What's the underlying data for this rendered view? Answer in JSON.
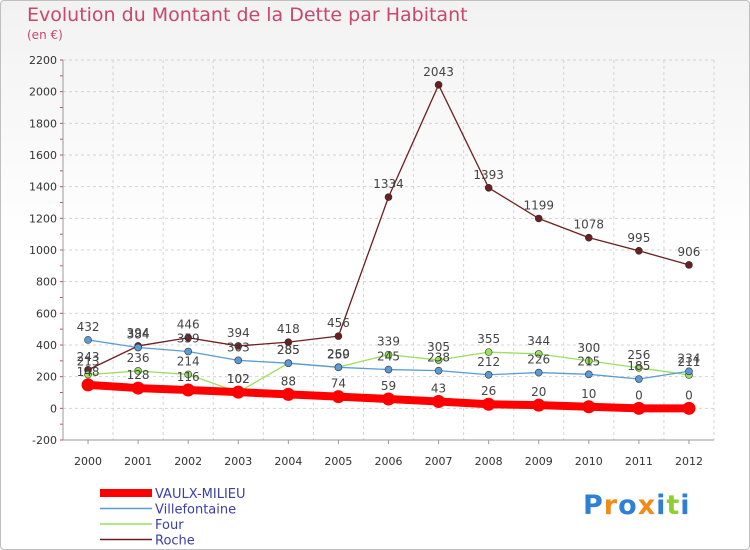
{
  "page": {
    "title": "Evolution du Montant de la Dette par Habitant",
    "subtitle": "(en €)"
  },
  "logo": {
    "text": "Proxiti"
  },
  "chart_data": {
    "type": "line",
    "title": "Evolution du Montant de la Dette par Habitant",
    "ylabel": "(en €)",
    "x": [
      2000,
      2001,
      2002,
      2003,
      2004,
      2005,
      2006,
      2007,
      2008,
      2009,
      2010,
      2011,
      2012
    ],
    "ylim": [
      -200,
      2200
    ],
    "yticks": [
      -200,
      0,
      200,
      400,
      600,
      800,
      1000,
      1200,
      1400,
      1600,
      1800,
      2000,
      2200
    ],
    "grid": true,
    "legend_position": "bottom-left",
    "series": [
      {
        "name": "VAULX-MILIEU",
        "color": "#ff0000",
        "values": [
          148,
          128,
          116,
          102,
          88,
          74,
          59,
          43,
          26,
          20,
          10,
          0,
          0
        ]
      },
      {
        "name": "Villefontaine",
        "color": "#5b9bd5",
        "values": [
          432,
          384,
          359,
          303,
          285,
          259,
          245,
          238,
          212,
          226,
          215,
          185,
          234
        ]
      },
      {
        "name": "Four",
        "color": "#99e05c",
        "values": [
          213,
          236,
          214,
          102,
          285,
          260,
          339,
          305,
          355,
          344,
          300,
          256,
          211
        ]
      },
      {
        "name": "Roche",
        "color": "#6b1f1f",
        "values": [
          243,
          394,
          446,
          394,
          418,
          456,
          1334,
          2043,
          1393,
          1199,
          1078,
          995,
          906
        ]
      }
    ]
  }
}
